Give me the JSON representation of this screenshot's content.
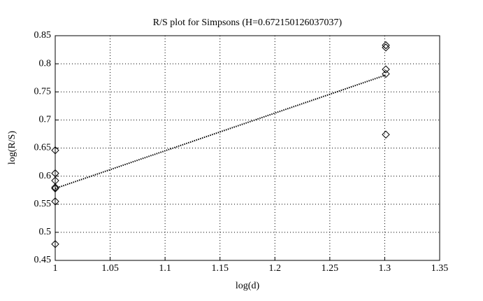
{
  "chart_data": {
    "type": "scatter",
    "title": "R/S plot for Simpsons (H=0.672150126037037)",
    "x_label": "log(d)",
    "y_label": "log(R/S)",
    "xlim": [
      1,
      1.35
    ],
    "xticks": [
      1,
      1.05,
      1.1,
      1.15,
      1.2,
      1.25,
      1.3,
      1.35
    ],
    "ylim": [
      0.45,
      0.85
    ],
    "yticks": [
      0.45,
      0.5,
      0.55,
      0.6,
      0.65,
      0.7,
      0.75,
      0.8,
      0.85
    ],
    "grid": true,
    "series": [
      {
        "mode": "markers",
        "marker": "diamond",
        "color": "#000000",
        "x": [
          1,
          1,
          1,
          1,
          1,
          1,
          1,
          1.301,
          1.301,
          1.301,
          1.301,
          1.301
        ],
        "values": [
          0.646,
          0.605,
          0.592,
          0.58,
          0.578,
          0.555,
          0.479,
          0.833,
          0.829,
          0.79,
          0.782,
          0.674
        ]
      },
      {
        "mode": "line",
        "line_style": "dotted",
        "color": "#000000",
        "x": [
          1,
          1.301
        ],
        "values": [
          0.578,
          0.78
        ]
      }
    ]
  }
}
